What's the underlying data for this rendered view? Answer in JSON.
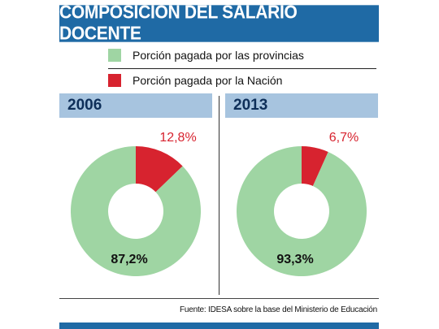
{
  "title": "COMPOSICIÓN DEL SALARIO DOCENTE",
  "legend": [
    {
      "label": "Porción pagada por las provincias",
      "color": "#9fd5a3"
    },
    {
      "label": "Porción pagada por la Nación",
      "color": "#d7232f"
    }
  ],
  "source": "Fuente: IDESA sobre la base del Ministerio de Educación",
  "colors": {
    "accent": "#1f6aa5",
    "panel": "#a7c4df",
    "provinces": "#9fd5a3",
    "nation": "#d7232f"
  },
  "chart_data": [
    {
      "type": "pie",
      "title": "2006",
      "slices": [
        {
          "name": "Porción pagada por la Nación",
          "value": 12.8,
          "label": "12,8%"
        },
        {
          "name": "Porción pagada por las provincias",
          "value": 87.2,
          "label": "87,2%"
        }
      ]
    },
    {
      "type": "pie",
      "title": "2013",
      "slices": [
        {
          "name": "Porción pagada por la Nación",
          "value": 6.7,
          "label": "6,7%"
        },
        {
          "name": "Porción pagada por las provincias",
          "value": 93.3,
          "label": "93,3%"
        }
      ]
    }
  ]
}
